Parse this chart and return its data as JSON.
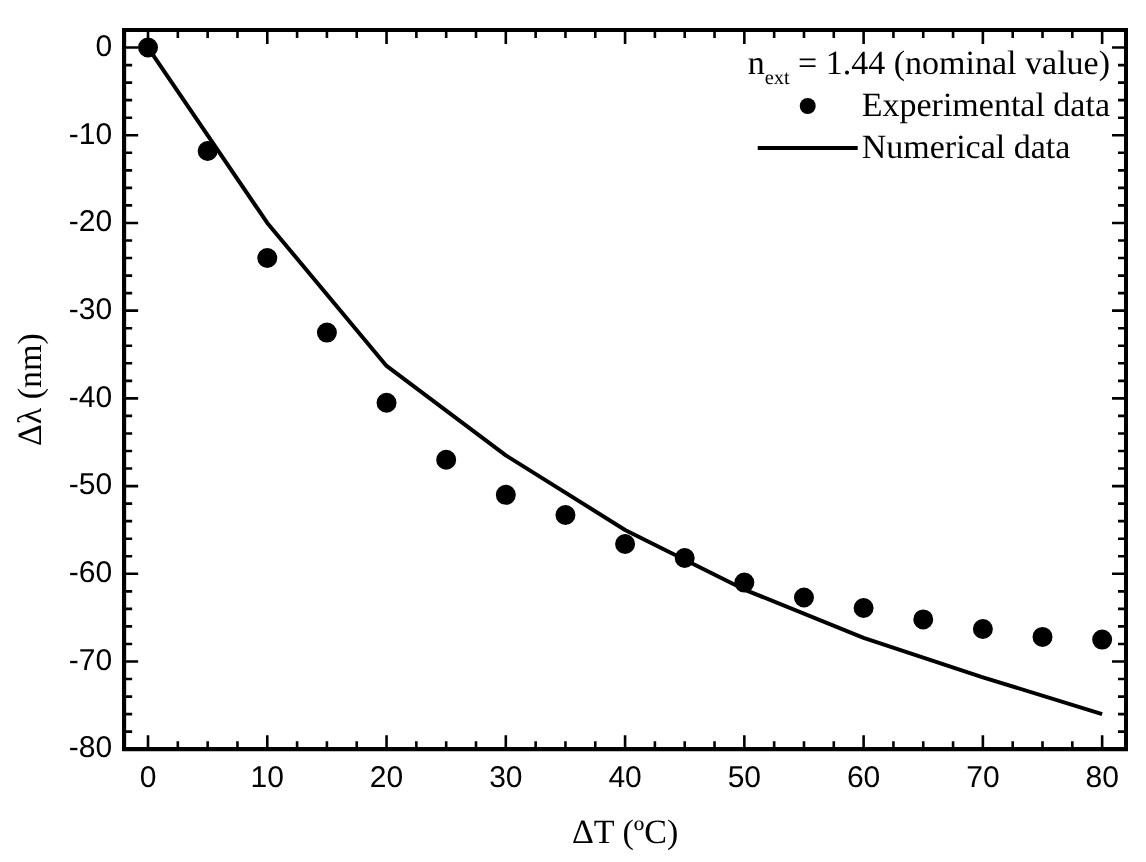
{
  "chart_data": {
    "type": "scatter",
    "xlabel": "ΔT (ºC)",
    "ylabel": "Δλ (nm)",
    "annotations": [
      "n$_{ext}$ = 1.44 (nominal value)"
    ],
    "xlim": [
      -2,
      82
    ],
    "ylim": [
      -80,
      2
    ],
    "xticks": [
      0,
      {
        "value": 2.5,
        "label": null
      },
      {
        "value": 5,
        "label": null
      },
      {
        "value": 7.5,
        "label": null
      },
      10,
      {
        "value": 12.5,
        "label": null
      },
      {
        "value": 15,
        "label": null
      },
      {
        "value": 17.5,
        "label": null
      },
      20,
      {
        "value": 22.5,
        "label": null
      },
      {
        "value": 25,
        "label": null
      },
      {
        "value": 27.5,
        "label": null
      },
      30,
      {
        "value": 32.5,
        "label": null
      },
      {
        "value": 35,
        "label": null
      },
      {
        "value": 37.5,
        "label": null
      },
      40,
      {
        "value": 42.5,
        "label": null
      },
      {
        "value": 45,
        "label": null
      },
      {
        "value": 47.5,
        "label": null
      },
      50,
      {
        "value": 52.5,
        "label": null
      },
      {
        "value": 55,
        "label": null
      },
      {
        "value": 57.5,
        "label": null
      },
      60,
      {
        "value": 62.5,
        "label": null
      },
      {
        "value": 65,
        "label": null
      },
      {
        "value": 67.5,
        "label": null
      },
      70,
      {
        "value": 72.5,
        "label": null
      },
      {
        "value": 75,
        "label": null
      },
      {
        "value": 77.5,
        "label": null
      },
      80
    ],
    "yticks": [
      -80,
      {
        "value": -78,
        "label": null
      },
      {
        "value": -76,
        "label": null
      },
      {
        "value": -74,
        "label": null
      },
      {
        "value": -72,
        "label": null
      },
      -70,
      {
        "value": -68,
        "label": null
      },
      {
        "value": -66,
        "label": null
      },
      {
        "value": -64,
        "label": null
      },
      {
        "value": -62,
        "label": null
      },
      -60,
      {
        "value": -58,
        "label": null
      },
      {
        "value": -56,
        "label": null
      },
      {
        "value": -54,
        "label": null
      },
      {
        "value": -52,
        "label": null
      },
      -50,
      {
        "value": -48,
        "label": null
      },
      {
        "value": -46,
        "label": null
      },
      {
        "value": -44,
        "label": null
      },
      {
        "value": -42,
        "label": null
      },
      -40,
      {
        "value": -38,
        "label": null
      },
      {
        "value": -36,
        "label": null
      },
      {
        "value": -34,
        "label": null
      },
      {
        "value": -32,
        "label": null
      },
      -30,
      {
        "value": -28,
        "label": null
      },
      {
        "value": -26,
        "label": null
      },
      {
        "value": -24,
        "label": null
      },
      {
        "value": -22,
        "label": null
      },
      -20,
      {
        "value": -18,
        "label": null
      },
      {
        "value": -16,
        "label": null
      },
      {
        "value": -14,
        "label": null
      },
      {
        "value": -12,
        "label": null
      },
      -10,
      {
        "value": -8,
        "label": null
      },
      {
        "value": -6,
        "label": null
      },
      {
        "value": -4,
        "label": null
      },
      {
        "value": -2,
        "label": null
      },
      0
    ],
    "grid": false,
    "legend": "top right",
    "series": [
      {
        "name": "Experimental data",
        "marker": "circle",
        "color": "#000000",
        "x": [
          0,
          5,
          10,
          15,
          20,
          25,
          30,
          35,
          40,
          45,
          50,
          55,
          60,
          65,
          70,
          75,
          80
        ],
        "values": [
          0,
          -11.8,
          -24,
          -32.5,
          -40.5,
          -47,
          -51,
          -53.3,
          -56.6,
          -58.2,
          -61,
          -62.7,
          -63.9,
          -65.2,
          -66.3,
          -67.2,
          -67.5
        ]
      },
      {
        "name": "Numerical data",
        "type": "line",
        "marker": "none",
        "line_style": "solid",
        "color": "#000000",
        "x": [
          0,
          10,
          20,
          30,
          40,
          50,
          60,
          70,
          80
        ],
        "values": [
          0,
          -20,
          -36.3,
          -46.5,
          -55,
          -61.8,
          -67.3,
          -71.8,
          -76
        ]
      }
    ]
  }
}
